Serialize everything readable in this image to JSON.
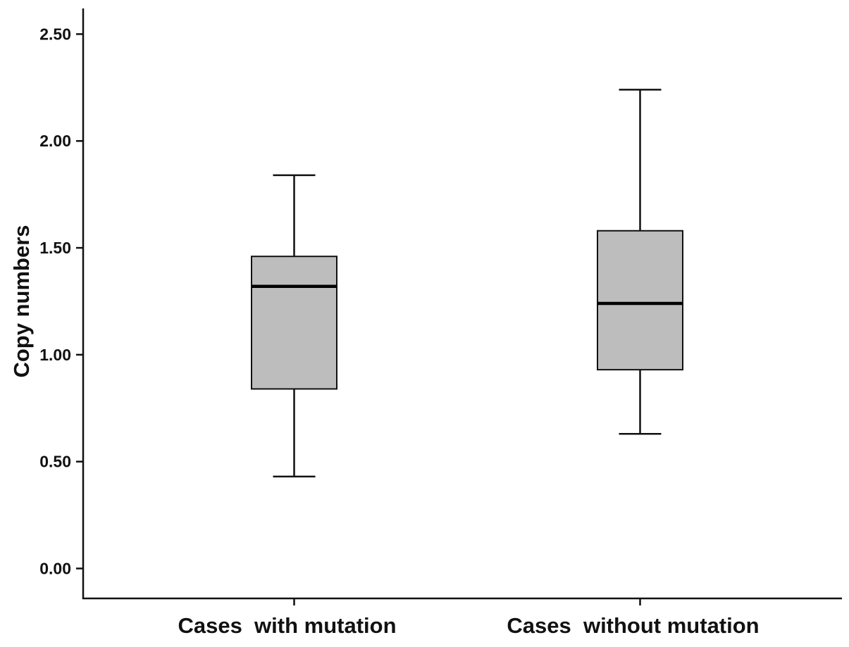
{
  "chart_data": {
    "type": "box",
    "categories": [
      "Cases  with mutation",
      "Cases  without mutation"
    ],
    "boxes": [
      {
        "min": 0.43,
        "q1": 0.84,
        "median": 1.32,
        "q3": 1.46,
        "max": 1.84
      },
      {
        "min": 0.63,
        "q1": 0.93,
        "median": 1.24,
        "q3": 1.58,
        "max": 2.24
      }
    ],
    "ylabel": "Copy numbers",
    "ylim": [
      -0.14,
      2.62
    ],
    "yticks": [
      0,
      0.5,
      1,
      1.5,
      2,
      2.5
    ],
    "yticklabels": [
      "0.00",
      "0.50",
      "1.00",
      "1.50",
      "2.00",
      "2.50"
    ],
    "grid": false,
    "colors": {
      "box_fill": "#bdbdbd",
      "line": "#111111"
    }
  }
}
